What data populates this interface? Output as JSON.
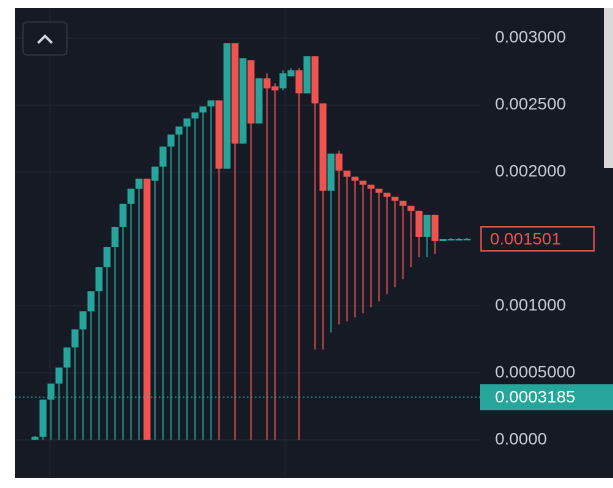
{
  "chart_data": {
    "type": "candlestick",
    "up_color": "#26a69a",
    "down_color": "#ef5350",
    "ylim": [
      -0.000285,
      0.003225
    ],
    "yticks": [
      {
        "value": 0,
        "label": "0.0000"
      },
      {
        "value": 0.0005,
        "label": "0.0005000"
      },
      {
        "value": 0.001,
        "label": "0.001000"
      },
      {
        "value": 0.002,
        "label": "0.002000"
      },
      {
        "value": 0.0025,
        "label": "0.002500"
      },
      {
        "value": 0.003,
        "label": "0.003000"
      }
    ],
    "grid": true,
    "last_price": {
      "value": 0.001501,
      "label": "0.001501"
    },
    "price_line": {
      "value": 0.0003185,
      "label": "0.0003185"
    },
    "open": [
      0,
      2.25e-05,
      0.0003,
      0.00042,
      0.00054,
      0.00069,
      0.000825,
      0.00096,
      0.00111,
      0.00129,
      0.00144,
      0.00159,
      0.0017625,
      0.001875,
      0.00195,
      0.001935,
      0.00204,
      0.00219,
      0.00228,
      0.00234,
      0.0024,
      0.002445,
      0.00249,
      0.002535,
      0.002025,
      0.0029625,
      0.0022125,
      0.002835,
      0.0023625,
      0.0027,
      0.00264,
      0.002625,
      0.002715,
      0.00276,
      0.0025875,
      0.002865,
      0.0025125,
      0.00186,
      0.0021375,
      0.00201,
      0.001965,
      0.001935,
      0.001905,
      0.001875,
      0.001845,
      0.001815,
      0.001785,
      0.0017475,
      0.00171,
      0.001515,
      0.00168,
      0.001485,
      0.0015,
      0.0015,
      0.0015
    ],
    "high": [
      3e-05,
      0.0003,
      0.00042,
      0.00054,
      0.00069,
      0.000825,
      0.00096,
      0.00111,
      0.00129,
      0.00144,
      0.00159,
      0.0017625,
      0.001875,
      0.00195,
      0.00195,
      0.00204,
      0.00219,
      0.00228,
      0.00234,
      0.0024,
      0.002445,
      0.00249,
      0.002535,
      0.002535,
      0.0029625,
      0.0029625,
      0.00285,
      0.002835,
      0.0027,
      0.0027375,
      0.0026625,
      0.00276,
      0.002775,
      0.002775,
      0.002865,
      0.002865,
      0.0025125,
      0.0021375,
      0.00216,
      0.00201,
      0.001965,
      0.001935,
      0.001905,
      0.001875,
      0.001845,
      0.001815,
      0.001785,
      0.0017475,
      0.00171,
      0.00168,
      0.00168,
      0.0015,
      0.0015075,
      0.0015075,
      0.0015075
    ],
    "low": [
      0,
      0,
      0,
      0,
      0,
      0,
      0,
      0,
      0,
      0,
      0,
      0,
      0,
      0,
      0,
      0,
      0,
      0,
      0,
      0,
      0,
      0,
      0,
      0,
      0.002025,
      0,
      0.0022125,
      0,
      0.0023625,
      0,
      0,
      0.00261,
      0.002715,
      0,
      0.0025875,
      0.000675,
      0.000675,
      0.0008025,
      0.0008625,
      0.000885,
      0.000915,
      0.000945,
      0.00099,
      0.001035,
      0.0010875,
      0.00114,
      0.0012,
      0.00129,
      0.001365,
      0.001365,
      0.0013875,
      0.001485,
      0.0014925,
      0.0014925,
      0.0014925
    ],
    "close": [
      2.25e-05,
      0.0003,
      0.00042,
      0.00054,
      0.00069,
      0.000825,
      0.00096,
      0.00111,
      0.00129,
      0.00144,
      0.00159,
      0.0017625,
      0.001875,
      0.00195,
      0,
      0.00204,
      0.00219,
      0.00228,
      0.00234,
      0.0024,
      0.002445,
      0.00249,
      0.002535,
      0.002025,
      0.0029625,
      0.0022125,
      0.00285,
      0.0023625,
      0.0027,
      0.002625,
      0.00261,
      0.0027375,
      0.00276,
      0.0025875,
      0.002865,
      0.0025125,
      0.00186,
      0.0021375,
      0.00201,
      0.001965,
      0.001935,
      0.001905,
      0.001875,
      0.001845,
      0.001815,
      0.001785,
      0.0017475,
      0.00171,
      0.001515,
      0.00168,
      0.001485,
      0.0015,
      0.0015,
      0.0015,
      0.001501
    ]
  }
}
